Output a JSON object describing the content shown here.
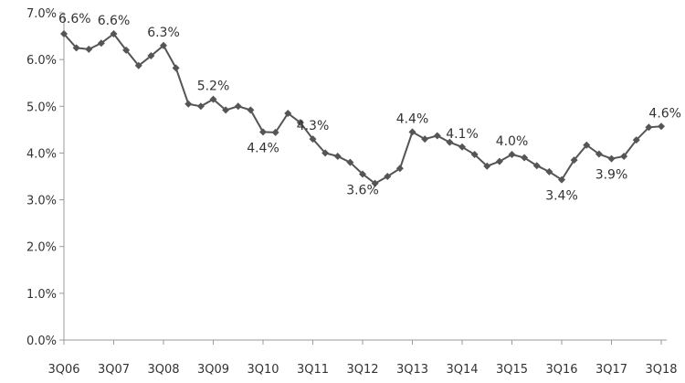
{
  "chart_data": {
    "type": "line",
    "title": "",
    "xlabel": "",
    "ylabel": "",
    "ylim": [
      0,
      7.0
    ],
    "y_ticks": [
      "0.0%",
      "1.0%",
      "2.0%",
      "3.0%",
      "4.0%",
      "5.0%",
      "6.0%",
      "7.0%"
    ],
    "y_tick_values": [
      0,
      1,
      2,
      3,
      4,
      5,
      6,
      7
    ],
    "x_tick_labels": [
      "3Q06",
      "3Q07",
      "3Q08",
      "3Q09",
      "3Q10",
      "3Q11",
      "3Q12",
      "3Q13",
      "3Q14",
      "3Q15",
      "3Q16",
      "3Q17",
      "3Q18"
    ],
    "x_tick_index": [
      0,
      4,
      8,
      12,
      16,
      20,
      24,
      28,
      32,
      36,
      40,
      44,
      48
    ],
    "grid": false,
    "legend": "none",
    "line_color": "#555555",
    "series": [
      {
        "values": [
          6.55,
          6.25,
          6.22,
          6.35,
          6.55,
          6.2,
          5.87,
          6.08,
          6.3,
          5.82,
          5.05,
          5.0,
          5.15,
          4.92,
          5.0,
          4.92,
          4.45,
          4.44,
          4.85,
          4.65,
          4.3,
          4.0,
          3.93,
          3.8,
          3.55,
          3.35,
          3.5,
          3.67,
          4.45,
          4.3,
          4.37,
          4.23,
          4.13,
          3.97,
          3.72,
          3.82,
          3.97,
          3.9,
          3.73,
          3.6,
          3.43,
          3.85,
          4.17,
          3.98,
          3.88,
          3.93,
          4.28,
          4.55,
          4.57
        ]
      }
    ],
    "data_labels": [
      {
        "index": 0,
        "text": "6.6%",
        "pos": "above"
      },
      {
        "index": 4,
        "text": "6.6%",
        "pos": "above"
      },
      {
        "index": 8,
        "text": "6.3%",
        "pos": "above"
      },
      {
        "index": 12,
        "text": "5.2%",
        "pos": "above"
      },
      {
        "index": 16,
        "text": "4.4%",
        "pos": "below"
      },
      {
        "index": 20,
        "text": "4.3%",
        "pos": "above"
      },
      {
        "index": 24,
        "text": "3.6%",
        "pos": "below"
      },
      {
        "index": 28,
        "text": "4.4%",
        "pos": "above"
      },
      {
        "index": 32,
        "text": "4.1%",
        "pos": "above"
      },
      {
        "index": 36,
        "text": "4.0%",
        "pos": "above"
      },
      {
        "index": 40,
        "text": "3.4%",
        "pos": "below"
      },
      {
        "index": 44,
        "text": "3.9%",
        "pos": "below"
      },
      {
        "index": 48,
        "text": "4.6%",
        "pos": "above"
      }
    ]
  }
}
